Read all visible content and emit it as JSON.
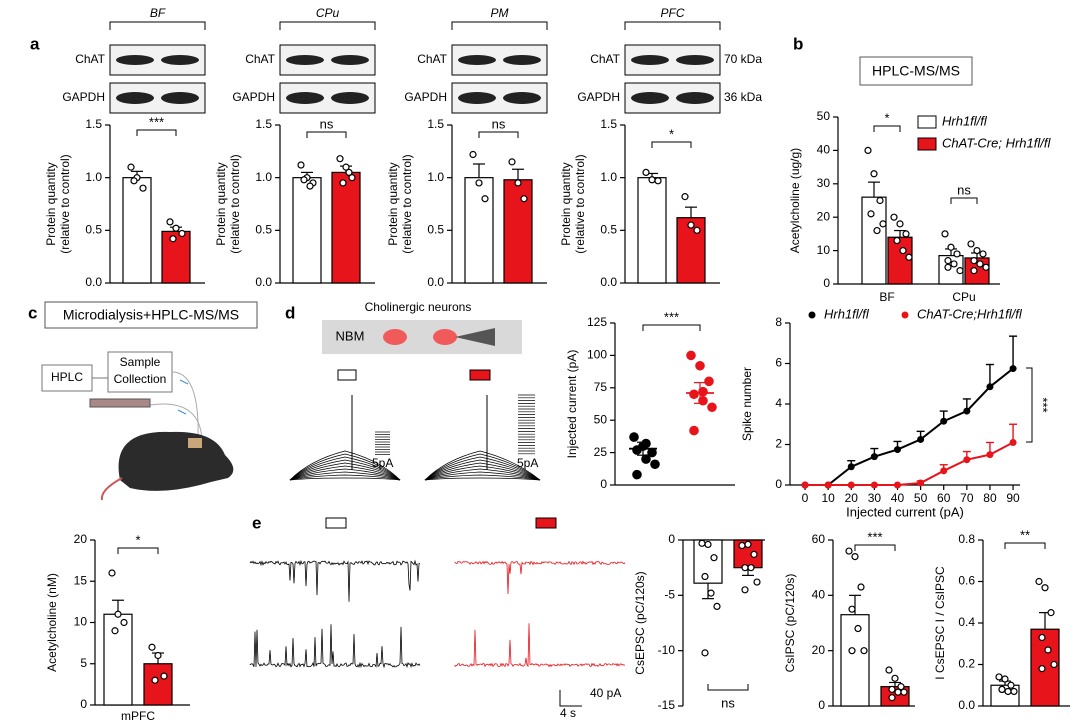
{
  "figure": {
    "panels": [
      "a",
      "b",
      "c",
      "d",
      "e"
    ],
    "blot_rows": [
      "ChAT",
      "GAPDH"
    ],
    "blot_sizes": [
      "70 kDa",
      "36 kDa"
    ],
    "hplc_box": "HPLC-MS/MS",
    "microdialysis": "Microdialysis+HPLC-MS/MS",
    "hplc": "HPLC",
    "sample_collection": [
      "Sample",
      "Collection"
    ],
    "cholinergic": "Cholinergic neurons",
    "nbm": "NBM",
    "scale_pa": "5pA",
    "scale_e": [
      "40 pA",
      "4 s"
    ]
  },
  "chart_data": [
    {
      "type": "bar",
      "title": "BF",
      "ylabel": [
        "Protein quantity",
        "(relative to control)"
      ],
      "values": [
        1.0,
        0.49
      ],
      "errors": [
        0.06,
        0.04
      ],
      "points": [
        [
          1.1,
          1.0,
          0.9,
          0.97
        ],
        [
          0.58,
          0.52,
          0.47,
          0.42
        ]
      ],
      "colors": [
        "#ffffff",
        "#e8141b"
      ],
      "ylim": [
        0,
        1.5
      ],
      "yticks": [
        {
          "value": 0,
          "label": "0.0"
        },
        0.5,
        {
          "value": 1,
          "label": "1.0"
        },
        1.5
      ],
      "annotation": "***"
    },
    {
      "type": "bar",
      "title": "CPu",
      "ylabel": [
        "Protein quantity",
        "(relative to control)"
      ],
      "values": [
        1.0,
        1.05
      ],
      "errors": [
        0.05,
        0.06
      ],
      "points": [
        [
          1.12,
          1.0,
          0.95,
          0.98,
          0.92
        ],
        [
          1.18,
          1.1,
          1.0,
          0.95,
          1.05
        ]
      ],
      "colors": [
        "#ffffff",
        "#e8141b"
      ],
      "ylim": [
        0,
        1.5
      ],
      "yticks": [
        {
          "value": 0,
          "label": "0.0"
        },
        0.5,
        {
          "value": 1,
          "label": "1.0"
        },
        1.5
      ],
      "annotation": "ns"
    },
    {
      "type": "bar",
      "title": "PM",
      "ylabel": [
        "Protein quantity",
        "(relative to control)"
      ],
      "values": [
        1.0,
        0.98
      ],
      "errors": [
        0.13,
        0.1
      ],
      "points": [
        [
          1.22,
          0.95,
          0.8
        ],
        [
          1.15,
          0.95,
          0.8
        ]
      ],
      "colors": [
        "#ffffff",
        "#e8141b"
      ],
      "ylim": [
        0,
        1.5
      ],
      "yticks": [
        {
          "value": 0,
          "label": "0.0"
        },
        0.5,
        {
          "value": 1,
          "label": "1.0"
        },
        1.5
      ],
      "annotation": "ns"
    },
    {
      "type": "bar",
      "title": "PFC",
      "ylabel": [
        "Protein quantity",
        "(relative to control)"
      ],
      "values": [
        1.0,
        0.62
      ],
      "errors": [
        0.04,
        0.1
      ],
      "points": [
        [
          1.05,
          0.98,
          0.97
        ],
        [
          0.82,
          0.55,
          0.5
        ]
      ],
      "colors": [
        "#ffffff",
        "#e8141b"
      ],
      "ylim": [
        0,
        1.5
      ],
      "yticks": [
        {
          "value": 0,
          "label": "0.0"
        },
        0.5,
        {
          "value": 1,
          "label": "1.0"
        },
        1.5
      ],
      "annotation": "*"
    },
    {
      "type": "grouped_bar",
      "ylabel": "Acetylcholine (ug/g)",
      "categories": [
        "BF",
        "CPu"
      ],
      "series": [
        {
          "name": "Hrh1fl/fl",
          "color": "#ffffff",
          "values": [
            26,
            8.5
          ],
          "errors": [
            4.5,
            2
          ],
          "points": [
            [
              40,
              33,
              25,
              21,
              16,
              18
            ],
            [
              15,
              11,
              9,
              7,
              6,
              4,
              5
            ]
          ]
        },
        {
          "name": "ChAT-Cre; Hrh1fl/fl",
          "color": "#e8141b",
          "values": [
            14,
            7.8
          ],
          "errors": [
            2,
            1.5
          ],
          "points": [
            [
              20,
              18,
              15,
              13,
              10,
              8
            ],
            [
              12,
              10,
              9,
              7,
              6,
              5,
              4
            ]
          ]
        }
      ],
      "ylim": [
        0,
        50
      ],
      "yticks": [
        0,
        10,
        20,
        30,
        40,
        50
      ],
      "annotations": [
        "*",
        "ns"
      ]
    },
    {
      "type": "bar",
      "ylabel": "Acetylcholine (nM)",
      "xlabel": "mPFC",
      "values": [
        11,
        5
      ],
      "errors": [
        1.7,
        1.3
      ],
      "points": [
        [
          16,
          11,
          10,
          9
        ],
        [
          7,
          6,
          3.5,
          3
        ]
      ],
      "colors": [
        "#ffffff",
        "#e8141b"
      ],
      "ylim": [
        0,
        20
      ],
      "yticks": [
        0,
        5,
        10,
        15,
        20
      ],
      "annotation": "*"
    },
    {
      "type": "dot",
      "ylabel": "Injected current (pA)",
      "values": [
        28,
        71
      ],
      "errors": [
        5,
        8
      ],
      "points": [
        [
          37,
          30,
          25,
          27,
          20,
          16,
          8,
          32
        ],
        [
          100,
          92,
          80,
          70,
          65,
          60,
          42,
          72
        ]
      ],
      "colors": [
        "#000000",
        "#e8141b"
      ],
      "ylim": [
        0,
        125
      ],
      "yticks": [
        0,
        25,
        50,
        75,
        100,
        125
      ],
      "annotation": "***"
    },
    {
      "type": "line",
      "xlabel": "Injected current (pA)",
      "ylabel": "Spike number",
      "x": [
        0,
        10,
        20,
        30,
        40,
        50,
        60,
        70,
        80,
        90
      ],
      "series": [
        {
          "name": "Hrh1fl/fl",
          "color": "#000000",
          "values": [
            0,
            0,
            0.9,
            1.4,
            1.75,
            2.25,
            3.15,
            3.65,
            4.85,
            5.75
          ],
          "errors": [
            0,
            0,
            0.3,
            0.4,
            0.4,
            0.4,
            0.5,
            0.6,
            1.1,
            1.6
          ]
        },
        {
          "name": "ChAT-Cre;Hrh1fl/fl",
          "color": "#e8141b",
          "values": [
            0,
            0,
            0,
            0,
            0,
            0.1,
            0.7,
            1.25,
            1.5,
            2.1
          ],
          "errors": [
            0,
            0,
            0,
            0,
            0,
            0.1,
            0.3,
            0.4,
            0.6,
            0.9
          ]
        }
      ],
      "xlim": [
        -6.5,
        93
      ],
      "xticks": [
        0,
        10,
        20,
        30,
        40,
        50,
        60,
        70,
        80,
        90
      ],
      "ylim": [
        0,
        8
      ],
      "yticks": [
        0,
        2,
        4,
        6,
        8
      ],
      "annotation": "***"
    },
    {
      "type": "bar",
      "ylabel": "CsEPSC (pC/120s)",
      "values": [
        -3.9,
        -2.5
      ],
      "errors": [
        1.4,
        0.7
      ],
      "points": [
        [
          -0.3,
          -0.4,
          -1.6,
          -3.3,
          -4.8,
          -6.0,
          -10.2
        ],
        [
          -0.5,
          -0.4,
          -1.3,
          -2.5,
          -2.5,
          -3.8,
          -4.5
        ]
      ],
      "colors": [
        "#ffffff",
        "#e8141b"
      ],
      "ylim": [
        -15,
        0
      ],
      "yticks": [
        -15,
        -10,
        -5,
        0
      ],
      "annotation": "ns"
    },
    {
      "type": "bar",
      "ylabel": "CsIPSC (pC/120s)",
      "values": [
        33,
        7
      ],
      "errors": [
        7,
        1.5
      ],
      "points": [
        [
          56,
          54,
          43,
          35,
          28,
          20,
          20
        ],
        [
          13,
          10,
          7,
          6,
          5,
          5,
          3
        ]
      ],
      "colors": [
        "#ffffff",
        "#e8141b"
      ],
      "ylim": [
        0,
        60
      ],
      "yticks": [
        0,
        20,
        40,
        60
      ],
      "annotation": "***"
    },
    {
      "type": "bar",
      "ylabel": "I CsEPSC I / CsIPSC",
      "values": [
        0.1,
        0.37
      ],
      "errors": [
        0.02,
        0.08
      ],
      "points": [
        [
          0.14,
          0.13,
          0.1,
          0.08,
          0.07,
          0.07,
          0.08
        ],
        [
          0.6,
          0.57,
          0.45,
          0.33,
          0.27,
          0.2,
          0.18
        ]
      ],
      "colors": [
        "#ffffff",
        "#e8141b"
      ],
      "ylim": [
        0,
        0.8
      ],
      "yticks": [
        {
          "value": 0,
          "label": "0.0"
        },
        0.2,
        0.4,
        0.6,
        0.8
      ],
      "annotation": "**"
    }
  ]
}
